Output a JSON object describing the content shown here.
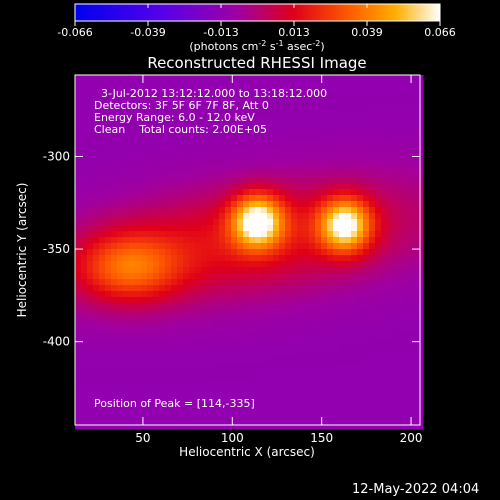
{
  "colorbar": {
    "ticks": [
      "-0.066",
      "-0.039",
      "-0.013",
      "0.013",
      "0.039",
      "0.066"
    ],
    "unit_main": "(photons cm",
    "unit_exp1": "-2",
    "unit_mid": " s",
    "unit_exp2": "-1",
    "unit_mid2": " asec",
    "unit_exp3": "-2",
    "unit_end": ")",
    "min": -0.066,
    "max": 0.066
  },
  "chart_data": {
    "type": "heatmap",
    "title": "Reconstructed RHESSI Image",
    "xlabel": "Heliocentric X (arcsec)",
    "ylabel": "Heliocentric Y (arcsec)",
    "xlim": [
      12,
      205
    ],
    "ylim": [
      -445,
      -256
    ],
    "xticks": [
      50,
      100,
      150,
      200
    ],
    "yticks": [
      -300,
      -350,
      -400
    ],
    "colormap": "RHESSI rainbow-heat (blue - purple - red - orange - yellow - white)",
    "sources": [
      {
        "x": 42,
        "y": -360,
        "sx": 20,
        "sy": 13,
        "amp": 0.035
      },
      {
        "x": 114,
        "y": -335,
        "sx": 10,
        "sy": 10,
        "amp": 0.066
      },
      {
        "x": 163,
        "y": -337,
        "sx": 10,
        "sy": 10,
        "amp": 0.064
      }
    ],
    "peak": {
      "x": 114,
      "y": -335
    }
  },
  "annotations": {
    "time_range": "3-Jul-2012 13:12:12.000 to 13:18:12.000",
    "detectors": "Detectors: 3F 5F 6F 7F 8F, Att 0",
    "energy": "Energy Range: 6.0 - 12.0 keV",
    "clean": "Clean    Total counts: 2.00E+05",
    "peak_text": "Position of Peak = [114,-335]"
  },
  "footer": {
    "timestamp": "12-May-2022 04:04"
  }
}
